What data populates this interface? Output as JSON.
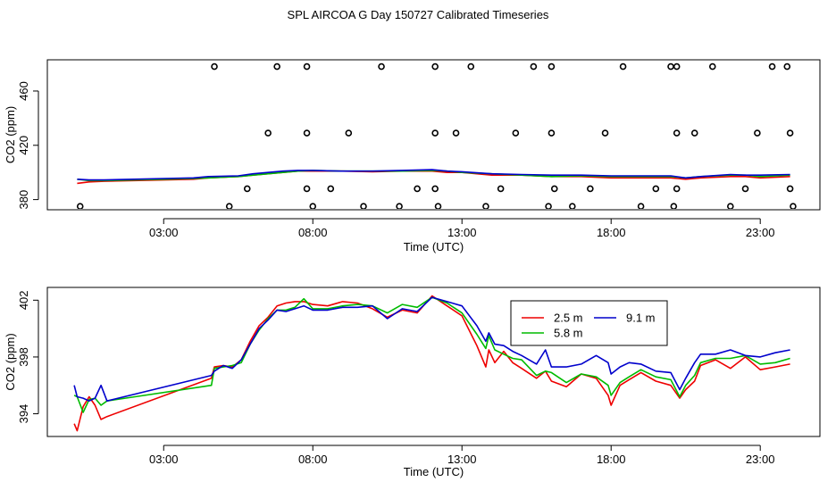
{
  "title": "SPL AIRCOA G  Day 150727  Calibrated Timeseries",
  "chart_data": [
    {
      "type": "line",
      "id": "top",
      "xlabel": "Time (UTC)",
      "ylabel": "CO2 (ppm)",
      "xlim": [
        -0.9,
        25.0
      ],
      "ylim": [
        372.5,
        483
      ],
      "x_ticks": [
        3,
        8,
        13,
        18,
        23
      ],
      "x_tick_labels": [
        "03:00",
        "08:00",
        "13:00",
        "18:00",
        "23:00"
      ],
      "y_ticks": [
        380,
        420,
        460
      ],
      "y_tick_labels": [
        "380",
        "420",
        "460"
      ],
      "series": [
        {
          "name": "2.5 m",
          "color": "#ee0000",
          "x": [
            0.1,
            0.5,
            1,
            2,
            3,
            4,
            4.5,
            5.5,
            6,
            7,
            7.5,
            8,
            9,
            10,
            11,
            12,
            12.5,
            13,
            14,
            15,
            16,
            17,
            18,
            19,
            20,
            20.5,
            21,
            22,
            22.5,
            23,
            24
          ],
          "y": [
            392,
            393,
            393.5,
            394,
            394.5,
            395,
            396,
            397,
            398,
            400,
            401,
            401,
            401,
            400.5,
            401,
            401,
            400,
            400,
            398,
            398,
            397,
            397,
            396,
            396,
            396,
            395,
            396,
            397,
            397,
            396,
            397
          ]
        },
        {
          "name": "5.8 m",
          "color": "#00bb00",
          "x": [
            0.1,
            0.5,
            1,
            2,
            3,
            4,
            4.5,
            5.5,
            6,
            7,
            7.5,
            8,
            9,
            10,
            11,
            12,
            12.5,
            13,
            14,
            15,
            16,
            17,
            18,
            19,
            20,
            20.5,
            21,
            22,
            22.5,
            23,
            24
          ],
          "y": [
            395,
            394,
            394,
            394.5,
            395,
            395.5,
            396,
            397,
            398,
            400,
            401,
            401.5,
            401,
            401,
            401,
            401.5,
            401,
            400,
            399,
            398,
            397,
            397.5,
            397,
            397,
            397,
            396,
            397,
            398,
            398,
            397,
            398
          ]
        },
        {
          "name": "9.1 m",
          "color": "#0000cc",
          "x": [
            0.1,
            0.5,
            1,
            2,
            3,
            4,
            4.5,
            5.5,
            6,
            7,
            7.5,
            8,
            9,
            10,
            11,
            12,
            12.5,
            13,
            14,
            15,
            16,
            17,
            18,
            19,
            20,
            20.5,
            21,
            22,
            22.5,
            23,
            24
          ],
          "y": [
            395,
            394.5,
            394.5,
            395,
            395.5,
            396,
            397,
            397.5,
            399,
            401,
            401.5,
            401.5,
            401,
            401,
            401.5,
            402,
            401,
            400.5,
            399,
            398.5,
            398,
            398,
            397.5,
            397.5,
            397.5,
            396,
            397,
            398.5,
            398,
            398,
            398.5
          ]
        },
        {
          "name": "flagged",
          "color": "#000000",
          "style": "open-circle",
          "x": [
            0.2,
            4.7,
            5.2,
            5.8,
            6.5,
            6.8,
            7.8,
            7.8,
            7.8,
            8.0,
            8.6,
            9.2,
            9.7,
            10.3,
            10.9,
            11.5,
            12.1,
            12.1,
            12.1,
            12.2,
            12.8,
            13.3,
            13.8,
            14.3,
            14.8,
            15.4,
            15.9,
            16.0,
            16.0,
            16.1,
            16.7,
            17.3,
            17.8,
            18.4,
            19.0,
            19.5,
            20.0,
            20.1,
            20.2,
            20.2,
            20.2,
            20.8,
            21.4,
            22.0,
            22.5,
            22.9,
            23.4,
            23.9,
            24.0,
            24.0,
            24.1
          ],
          "y": [
            375,
            478,
            375,
            388,
            429,
            478,
            478,
            429,
            388,
            375,
            388,
            429,
            375,
            478,
            375,
            388,
            478,
            429,
            388,
            375,
            429,
            478,
            375,
            388,
            429,
            478,
            375,
            478,
            429,
            388,
            375,
            388,
            429,
            478,
            375,
            388,
            478,
            375,
            429,
            388,
            478,
            429,
            478,
            375,
            388,
            429,
            478,
            478,
            429,
            388,
            375
          ]
        }
      ]
    },
    {
      "type": "line",
      "id": "bottom",
      "xlabel": "Time (UTC)",
      "ylabel": "CO2 (ppm)",
      "xlim": [
        -0.9,
        25.0
      ],
      "ylim": [
        392.4,
        402.9
      ],
      "x_ticks": [
        3,
        8,
        13,
        18,
        23
      ],
      "x_tick_labels": [
        "03:00",
        "08:00",
        "13:00",
        "18:00",
        "23:00"
      ],
      "y_ticks": [
        394,
        398,
        402
      ],
      "y_tick_labels": [
        "394",
        "398",
        "402"
      ],
      "legend": {
        "position": "top-right",
        "entries": [
          "2.5 m",
          "5.8 m",
          "9.1 m"
        ]
      },
      "series": [
        {
          "name": "2.5 m",
          "color": "#ee0000",
          "x": [
            0.0,
            0.1,
            0.3,
            0.5,
            0.7,
            0.9,
            1.1,
            4.6,
            4.7,
            5.0,
            5.3,
            5.6,
            5.9,
            6.2,
            6.5,
            6.8,
            7.1,
            7.4,
            7.7,
            8.0,
            8.5,
            9.0,
            9.5,
            10.0,
            10.5,
            11.0,
            11.5,
            12.0,
            12.5,
            13.0,
            13.5,
            13.8,
            13.9,
            14.1,
            14.4,
            14.7,
            15.0,
            15.5,
            15.8,
            16.0,
            16.5,
            17.0,
            17.5,
            17.9,
            18.0,
            18.3,
            18.6,
            19.0,
            19.5,
            20.0,
            20.3,
            20.5,
            20.8,
            21.0,
            21.5,
            22.0,
            22.5,
            23.0,
            23.5,
            24.0
          ],
          "y": [
            393.3,
            392.8,
            394.5,
            395.2,
            394.6,
            393.6,
            393.8,
            396.5,
            397.3,
            397.4,
            397.3,
            397.8,
            399.1,
            400.2,
            400.8,
            401.6,
            401.8,
            401.9,
            401.9,
            401.7,
            401.6,
            401.9,
            401.8,
            401.4,
            400.8,
            401.3,
            401.1,
            402.3,
            401.6,
            400.9,
            398.8,
            397.3,
            398.5,
            397.6,
            398.4,
            397.6,
            397.2,
            396.5,
            397.0,
            396.3,
            395.9,
            396.8,
            396.5,
            395.3,
            394.6,
            396.0,
            396.4,
            396.9,
            396.3,
            396.0,
            395.1,
            395.7,
            396.3,
            397.4,
            397.8,
            397.2,
            398.0,
            397.1,
            397.3,
            397.5
          ]
        },
        {
          "name": "5.8 m",
          "color": "#00bb00",
          "x": [
            0.0,
            0.1,
            0.3,
            0.5,
            0.7,
            0.9,
            1.1,
            4.6,
            4.7,
            5.0,
            5.3,
            5.6,
            5.9,
            6.2,
            6.5,
            6.8,
            7.1,
            7.4,
            7.7,
            8.0,
            8.5,
            9.0,
            9.5,
            10.0,
            10.5,
            11.0,
            11.5,
            12.0,
            12.5,
            13.0,
            13.5,
            13.8,
            13.9,
            14.1,
            14.4,
            14.7,
            15.0,
            15.5,
            15.8,
            16.0,
            16.5,
            17.0,
            17.5,
            17.9,
            18.0,
            18.3,
            18.6,
            19.0,
            19.5,
            20.0,
            20.3,
            20.5,
            20.8,
            21.0,
            21.5,
            22.0,
            22.5,
            23.0,
            23.5,
            24.0
          ],
          "y": [
            395.3,
            395.2,
            394.1,
            395.0,
            395.1,
            394.6,
            394.9,
            396.0,
            397.2,
            397.3,
            397.4,
            397.6,
            398.9,
            399.9,
            400.7,
            401.3,
            401.3,
            401.5,
            402.1,
            401.4,
            401.4,
            401.6,
            401.7,
            401.6,
            401.1,
            401.7,
            401.5,
            402.2,
            401.8,
            401.1,
            399.6,
            398.6,
            399.5,
            398.5,
            398.2,
            397.9,
            397.8,
            396.7,
            397.0,
            396.9,
            396.2,
            396.8,
            396.6,
            396.0,
            395.3,
            396.2,
            396.6,
            397.1,
            396.6,
            396.4,
            395.2,
            396.0,
            396.7,
            397.6,
            397.9,
            397.9,
            398.1,
            397.5,
            397.6,
            397.9
          ]
        },
        {
          "name": "9.1 m",
          "color": "#0000cc",
          "x": [
            0.0,
            0.1,
            0.3,
            0.5,
            0.7,
            0.9,
            1.1,
            4.6,
            4.7,
            5.0,
            5.3,
            5.6,
            5.9,
            6.2,
            6.5,
            6.8,
            7.1,
            7.4,
            7.7,
            8.0,
            8.5,
            9.0,
            9.5,
            10.0,
            10.5,
            11.0,
            11.5,
            12.0,
            12.5,
            13.0,
            13.5,
            13.8,
            13.9,
            14.1,
            14.4,
            14.7,
            15.0,
            15.5,
            15.8,
            16.0,
            16.5,
            17.0,
            17.5,
            17.9,
            18.0,
            18.3,
            18.6,
            19.0,
            19.5,
            20.0,
            20.3,
            20.5,
            20.8,
            21.0,
            21.5,
            22.0,
            22.5,
            23.0,
            23.5,
            24.0
          ],
          "y": [
            396.0,
            395.2,
            395.1,
            394.9,
            395.1,
            396.0,
            394.9,
            396.7,
            397.0,
            397.4,
            397.2,
            397.8,
            398.9,
            400.0,
            400.6,
            401.3,
            401.2,
            401.4,
            401.6,
            401.3,
            401.3,
            401.5,
            401.5,
            401.6,
            400.7,
            401.4,
            401.2,
            402.2,
            401.9,
            401.6,
            400.2,
            399.1,
            399.7,
            398.9,
            398.8,
            398.4,
            398.1,
            397.5,
            398.5,
            397.3,
            397.3,
            397.5,
            398.1,
            397.6,
            396.8,
            397.3,
            397.6,
            397.5,
            397.0,
            396.9,
            395.7,
            396.5,
            397.6,
            398.2,
            398.2,
            398.5,
            398.1,
            398.0,
            398.3,
            398.5
          ]
        }
      ]
    }
  ]
}
